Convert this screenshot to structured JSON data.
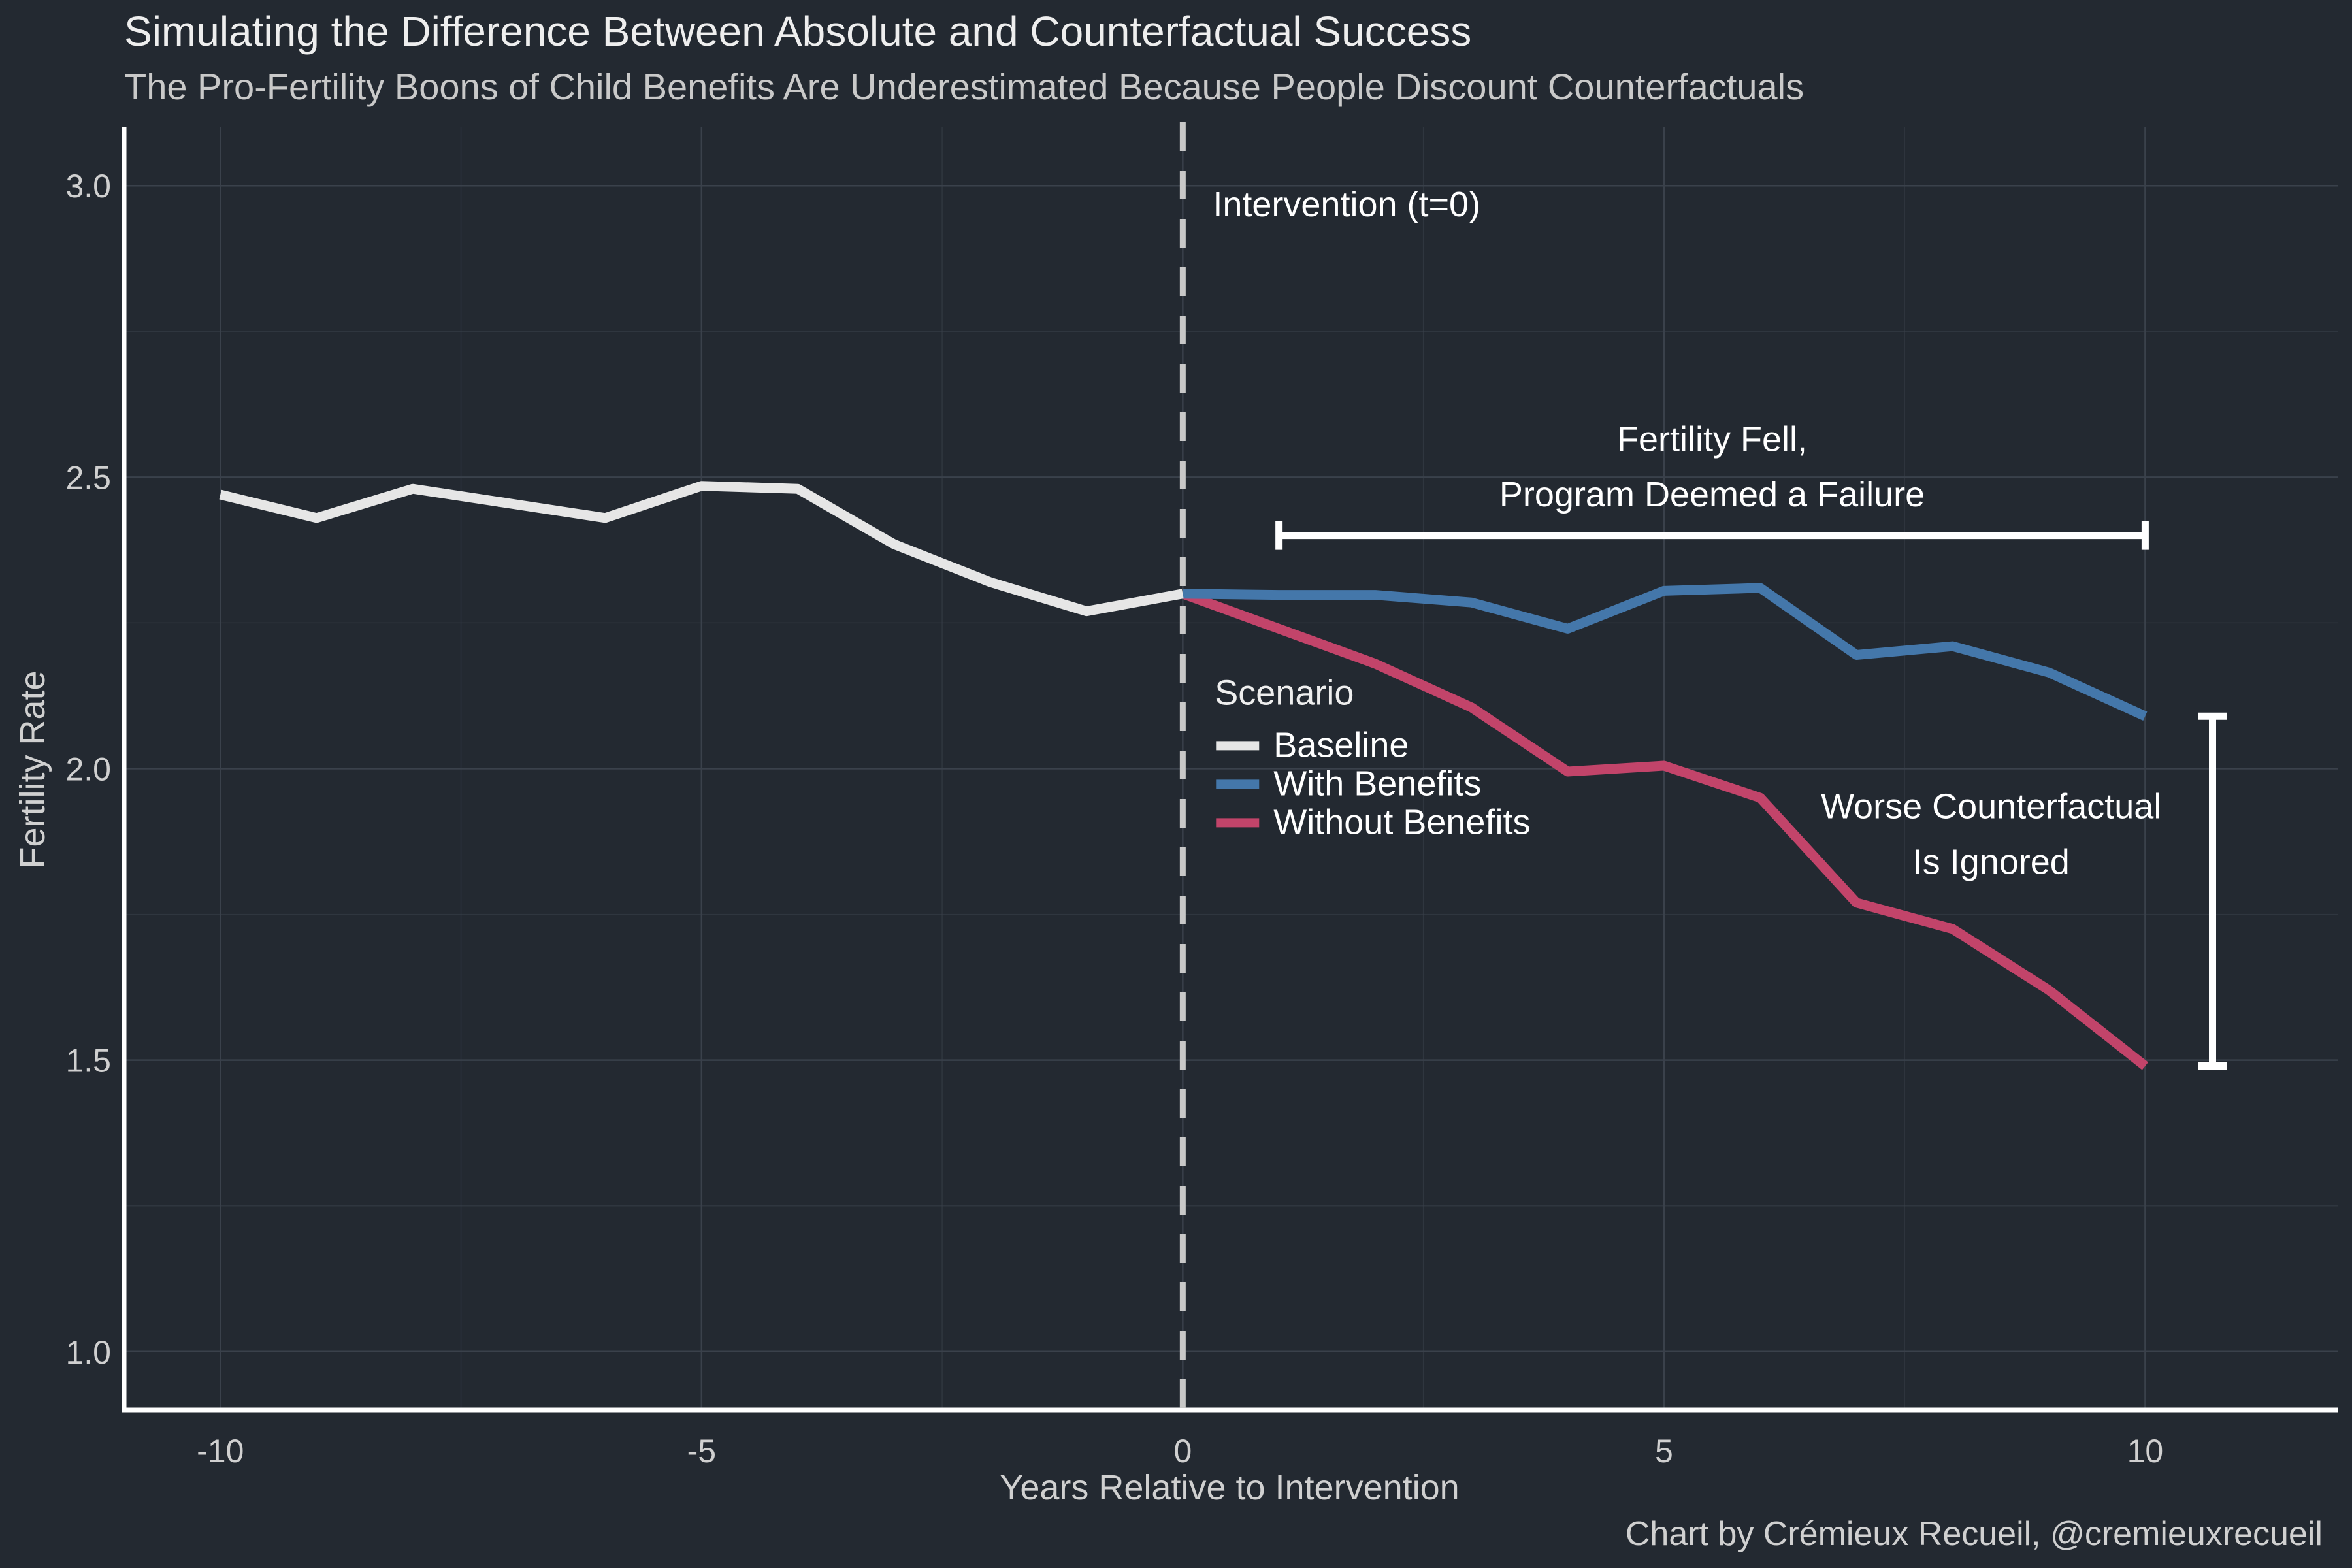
{
  "chart_data": {
    "type": "line",
    "title": "Simulating the Difference Between Absolute and Counterfactual Success",
    "subtitle": "The Pro-Fertility Boons of Child Benefits Are Underestimated Because People Discount Counterfactuals",
    "xlabel": "Years Relative to Intervention",
    "ylabel": "Fertility Rate",
    "xlim": [
      -11,
      12
    ],
    "ylim": [
      0.9,
      3.1
    ],
    "x_ticks": [
      -10,
      -5,
      0,
      5,
      10
    ],
    "x_tick_labels": [
      "-10",
      "-5",
      "0",
      "5",
      "10"
    ],
    "y_ticks": [
      1.0,
      1.5,
      2.0,
      2.5,
      3.0
    ],
    "y_tick_labels": [
      "1.0",
      "1.5",
      "2.0",
      "2.5",
      "3.0"
    ],
    "grid": true,
    "legend": {
      "title": "Scenario",
      "placement": "center",
      "entries": [
        "Baseline",
        "With Benefits",
        "Without Benefits"
      ]
    },
    "series": [
      {
        "name": "Baseline",
        "color": "#e6e6e6",
        "x": [
          -10,
          -9,
          -8,
          -7,
          -6,
          -5,
          -4,
          -3,
          -2,
          -1,
          0
        ],
        "values": [
          2.47,
          2.43,
          2.48,
          2.455,
          2.43,
          2.485,
          2.48,
          2.385,
          2.32,
          2.27,
          2.3
        ]
      },
      {
        "name": "With Benefits",
        "color": "#4477aa",
        "x": [
          0,
          1,
          2,
          3,
          4,
          5,
          6,
          7,
          8,
          9,
          10
        ],
        "values": [
          2.3,
          2.298,
          2.298,
          2.285,
          2.24,
          2.305,
          2.31,
          2.195,
          2.21,
          2.165,
          2.09
        ]
      },
      {
        "name": "Without Benefits",
        "color": "#c2446a",
        "x": [
          0,
          1,
          2,
          3,
          4,
          5,
          6,
          7,
          8,
          9,
          10
        ],
        "values": [
          2.3,
          2.24,
          2.18,
          2.105,
          1.995,
          2.005,
          1.95,
          1.77,
          1.725,
          1.62,
          1.49
        ]
      }
    ],
    "annotations": {
      "intervention": {
        "x": 0,
        "label": "Intervention (t=0)"
      },
      "fell_bracket": {
        "x_start": 1,
        "x_end": 10,
        "y": 2.4,
        "line1": "Fertility Fell,",
        "line2": "Program Deemed a Failure"
      },
      "gap_bracket": {
        "x": 10.7,
        "y_low": 1.49,
        "y_high": 2.09,
        "line1": "Worse Counterfactual",
        "line2": "Is Ignored"
      }
    },
    "caption": "Chart by Crémieux Recueil, @cremieuxrecueil"
  },
  "colors": {
    "background": "#232931",
    "grid": "#3a414b",
    "axis": "#ffffff",
    "baseline": "#e6e6e6",
    "with_benefits": "#4477aa",
    "without_benefits": "#c2446a",
    "intervention_line": "#c8c8c8"
  }
}
